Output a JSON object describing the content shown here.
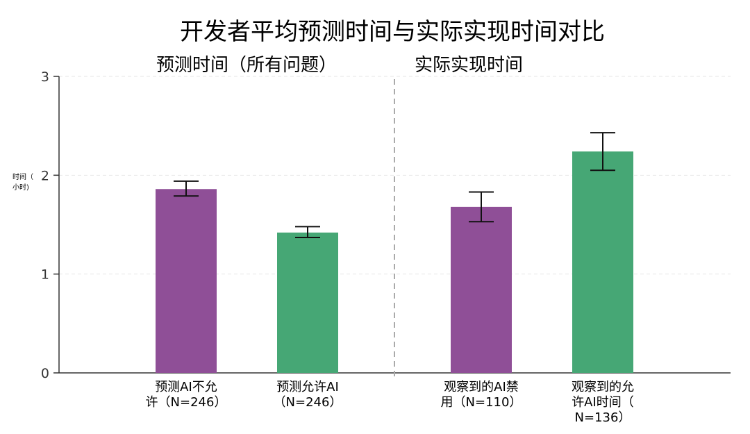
{
  "chart_data": {
    "type": "bar",
    "title": "开发者平均预测时间与实际实现时间对比",
    "ylabel": "时间（小时）",
    "ylabel_lines": [
      "时间（",
      "小时)"
    ],
    "ylim": [
      0,
      3
    ],
    "yticks": [
      0,
      1,
      2,
      3
    ],
    "grid": true,
    "panels": [
      {
        "title": "预测时间（所有问题）"
      },
      {
        "title": "实际实现时间"
      }
    ],
    "categories": [
      "预测AI不允许（N=246）",
      "预测允许AI（N=246）",
      "观察到的AI禁用（N=110）",
      "观察到的允许AI时间（N=136）"
    ],
    "category_lines": [
      [
        "预测AI不允",
        "许（N=246）"
      ],
      [
        "预测允许AI",
        "（N=246）"
      ],
      [
        "观察到的AI禁",
        "用（N=110）"
      ],
      [
        "观察到的允",
        "许AI时间（",
        "N=136）"
      ]
    ],
    "values": [
      1.86,
      1.42,
      1.68,
      2.24
    ],
    "error_low": [
      1.79,
      1.37,
      1.53,
      2.05
    ],
    "error_high": [
      1.94,
      1.48,
      1.83,
      2.43
    ],
    "bar_colors": [
      "#8f4f97",
      "#46a775",
      "#8f4f97",
      "#46a775"
    ]
  }
}
